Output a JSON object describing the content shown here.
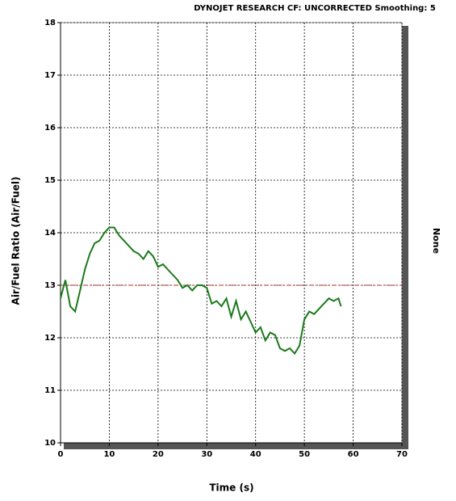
{
  "chart_data": {
    "type": "line",
    "header": "DYNOJET RESEARCH  CF: UNCORRECTED  Smoothing: 5",
    "side_label": "None",
    "x_label": "Time (s)",
    "y_label": "Air/Fuel Ratio (Air/Fuel)",
    "x": [
      0,
      1,
      2,
      3,
      4,
      5,
      6,
      7,
      8,
      9,
      10,
      11,
      12,
      13,
      14,
      15,
      16,
      17,
      18,
      19,
      20,
      21,
      22,
      23,
      24,
      25,
      26,
      27,
      28,
      29,
      30,
      31,
      32,
      33,
      34,
      35,
      36,
      37,
      38,
      39,
      40,
      41,
      42,
      43,
      44,
      45,
      46,
      47,
      48,
      49,
      50,
      51,
      52,
      53,
      54,
      55,
      56,
      57,
      57.5
    ],
    "series": [
      {
        "name": "Air/Fuel",
        "color": "#1a7a1a",
        "values": [
          12.75,
          13.1,
          12.6,
          12.5,
          12.9,
          13.3,
          13.6,
          13.8,
          13.85,
          14.0,
          14.1,
          14.1,
          13.95,
          13.85,
          13.75,
          13.65,
          13.6,
          13.5,
          13.65,
          13.55,
          13.35,
          13.4,
          13.3,
          13.2,
          13.1,
          12.95,
          13.0,
          12.9,
          13.0,
          13.0,
          12.95,
          12.65,
          12.7,
          12.6,
          12.75,
          12.4,
          12.7,
          12.35,
          12.5,
          12.3,
          12.1,
          12.2,
          11.95,
          12.1,
          12.05,
          11.8,
          11.75,
          11.8,
          11.7,
          11.85,
          12.35,
          12.5,
          12.45,
          12.55,
          12.65,
          12.75,
          12.7,
          12.75,
          12.6
        ]
      }
    ],
    "reference_line": {
      "value": 13,
      "color": "#b03020"
    },
    "xlim": [
      0,
      70
    ],
    "xticks": [
      0,
      10,
      20,
      30,
      40,
      50,
      60,
      70
    ],
    "ylim": [
      10,
      18
    ],
    "yticks": [
      10,
      11,
      12,
      13,
      14,
      15,
      16,
      17,
      18
    ],
    "grid": true
  }
}
